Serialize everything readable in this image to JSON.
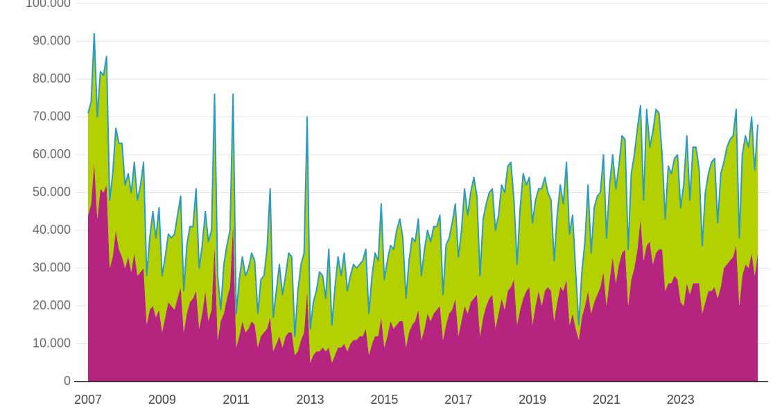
{
  "chart_data": {
    "type": "stacked_area",
    "categories": [
      "2007",
      null,
      null,
      null,
      null,
      null,
      null,
      null,
      null,
      null,
      null,
      null,
      null,
      null,
      null,
      null,
      null,
      null,
      null,
      null,
      null,
      null,
      null,
      null,
      "2009",
      null,
      null,
      null,
      null,
      null,
      null,
      null,
      null,
      null,
      null,
      null,
      null,
      null,
      null,
      null,
      null,
      null,
      null,
      null,
      null,
      null,
      null,
      null,
      "2011",
      null,
      null,
      null,
      null,
      null,
      null,
      null,
      null,
      null,
      null,
      null,
      null,
      null,
      null,
      null,
      null,
      null,
      null,
      null,
      null,
      null,
      null,
      null,
      "2013",
      null,
      null,
      null,
      null,
      null,
      null,
      null,
      null,
      null,
      null,
      null,
      null,
      null,
      null,
      null,
      null,
      null,
      null,
      null,
      null,
      null,
      null,
      null,
      "2015",
      null,
      null,
      null,
      null,
      null,
      null,
      null,
      null,
      null,
      null,
      null,
      null,
      null,
      null,
      null,
      null,
      null,
      null,
      null,
      null,
      null,
      null,
      null,
      "2017",
      null,
      null,
      null,
      null,
      null,
      null,
      null,
      null,
      null,
      null,
      null,
      null,
      null,
      null,
      null,
      null,
      null,
      null,
      null,
      null,
      null,
      null,
      null,
      "2019",
      null,
      null,
      null,
      null,
      null,
      null,
      null,
      null,
      null,
      null,
      null,
      null,
      null,
      null,
      null,
      null,
      null,
      null,
      null,
      null,
      null,
      null,
      null,
      "2021",
      null,
      null,
      null,
      null,
      null,
      null,
      null,
      null,
      null,
      null,
      null,
      null,
      null,
      null,
      null,
      null,
      null,
      null,
      null,
      null,
      null,
      null,
      null,
      "2023",
      null,
      null,
      null,
      null,
      null,
      null,
      null,
      null,
      null,
      null,
      null,
      null,
      null,
      null,
      null,
      null,
      null,
      null,
      null,
      null,
      null,
      null,
      null,
      null,
      null
    ],
    "series": [
      {
        "color": "#b5247f",
        "values": [
          44000,
          47000,
          58000,
          43000,
          51000,
          50000,
          52000,
          30000,
          33000,
          40000,
          35000,
          33000,
          30000,
          33000,
          29000,
          34000,
          28000,
          29000,
          30000,
          15000,
          19000,
          20000,
          17000,
          19000,
          13000,
          17000,
          21000,
          20000,
          19000,
          22000,
          25000,
          13000,
          18000,
          21000,
          22000,
          24000,
          14000,
          18000,
          24000,
          16000,
          19000,
          36000,
          11000,
          16000,
          18000,
          22000,
          25000,
          42000,
          9000,
          12000,
          16000,
          13000,
          14000,
          16000,
          15000,
          9000,
          12000,
          13000,
          14000,
          17000,
          8000,
          10000,
          12000,
          9000,
          12000,
          13000,
          13000,
          7000,
          8000,
          11000,
          13000,
          24000,
          5000,
          7000,
          8000,
          8000,
          9000,
          8000,
          9000,
          5000,
          7000,
          9000,
          9000,
          10000,
          8000,
          10000,
          11000,
          11000,
          12000,
          12000,
          14000,
          7000,
          10000,
          12000,
          12000,
          17000,
          9000,
          12000,
          16000,
          14000,
          15000,
          16000,
          16000,
          9000,
          13000,
          15000,
          16000,
          19000,
          11000,
          14000,
          18000,
          16000,
          18000,
          19000,
          20000,
          11000,
          15000,
          18000,
          19000,
          22000,
          12000,
          16000,
          20000,
          18000,
          21000,
          22000,
          23000,
          12000,
          17000,
          20000,
          22000,
          23000,
          14000,
          18000,
          22000,
          19000,
          24000,
          25000,
          27000,
          15000,
          19000,
          22000,
          24000,
          25000,
          15000,
          20000,
          24000,
          20000,
          24000,
          25000,
          24000,
          16000,
          21000,
          25000,
          24000,
          27000,
          15000,
          18000,
          14000,
          11000,
          17000,
          20000,
          24000,
          18000,
          21000,
          23000,
          25000,
          29000,
          20000,
          27000,
          33000,
          26000,
          31000,
          34000,
          35000,
          20000,
          27000,
          30000,
          35000,
          43000,
          32000,
          36000,
          37000,
          31000,
          34000,
          35000,
          35000,
          24000,
          26000,
          26000,
          28000,
          27000,
          21000,
          20000,
          26000,
          23000,
          26000,
          26000,
          26000,
          18000,
          21000,
          24000,
          24000,
          25000,
          22000,
          25000,
          30000,
          31000,
          32000,
          33000,
          36000,
          20000,
          28000,
          31000,
          30000,
          34000,
          28000,
          34000
        ]
      },
      {
        "color": "#b3d100",
        "values": [
          27000,
          27000,
          34000,
          27000,
          31000,
          31000,
          34000,
          18000,
          22000,
          27000,
          28000,
          30000,
          22000,
          22000,
          21000,
          24000,
          20000,
          23000,
          28000,
          13000,
          19000,
          25000,
          21000,
          27000,
          15000,
          16000,
          18000,
          18000,
          20000,
          22000,
          24000,
          11000,
          18000,
          20000,
          19000,
          27000,
          16000,
          18000,
          21000,
          21000,
          21000,
          40000,
          17000,
          3000,
          13000,
          14000,
          15000,
          34000,
          9000,
          15000,
          17000,
          15000,
          16000,
          18000,
          17000,
          9000,
          15000,
          15000,
          21000,
          34000,
          9000,
          14000,
          19000,
          14000,
          16000,
          21000,
          20000,
          5000,
          16000,
          20000,
          21000,
          46000,
          9000,
          14000,
          16000,
          21000,
          19000,
          14000,
          26000,
          10000,
          18000,
          24000,
          19000,
          24000,
          16000,
          18000,
          20000,
          19000,
          19000,
          20000,
          21000,
          11000,
          18000,
          22000,
          20000,
          30000,
          18000,
          20000,
          20000,
          21000,
          25000,
          27000,
          22000,
          13000,
          19000,
          23000,
          21000,
          24000,
          17000,
          21000,
          22000,
          21000,
          23000,
          22000,
          24000,
          12000,
          21000,
          20000,
          23000,
          25000,
          21000,
          24000,
          31000,
          26000,
          29000,
          32000,
          26000,
          16000,
          26000,
          27000,
          28000,
          28000,
          26000,
          26000,
          30000,
          31000,
          33000,
          33000,
          21000,
          16000,
          27000,
          33000,
          28000,
          29000,
          27000,
          28000,
          27000,
          31000,
          30000,
          25000,
          24000,
          16000,
          23000,
          27000,
          23000,
          31000,
          24000,
          26000,
          15000,
          4000,
          12000,
          17000,
          28000,
          16000,
          25000,
          26000,
          25000,
          31000,
          18000,
          25000,
          27000,
          25000,
          26000,
          31000,
          29000,
          15000,
          28000,
          30000,
          32000,
          30000,
          16000,
          36000,
          25000,
          35000,
          38000,
          36000,
          25000,
          19000,
          31000,
          29000,
          31000,
          33000,
          25000,
          32000,
          39000,
          25000,
          36000,
          36000,
          30000,
          18000,
          29000,
          31000,
          34000,
          34000,
          20000,
          30000,
          28000,
          31000,
          32000,
          32000,
          36000,
          18000,
          32000,
          34000,
          32000,
          36000,
          28000,
          34000
        ]
      }
    ],
    "outline_color": "#2a9bc4",
    "ylim": [
      0,
      100000
    ],
    "yticks": [
      0,
      {
        "value": 10000,
        "label": "10.000"
      },
      {
        "value": 20000,
        "label": "20.000"
      },
      {
        "value": 30000,
        "label": "30.000"
      },
      {
        "value": 40000,
        "label": "40.000"
      },
      {
        "value": 50000,
        "label": "50.000"
      },
      {
        "value": 60000,
        "label": "60.000"
      },
      {
        "value": 70000,
        "label": "70.000"
      },
      {
        "value": 80000,
        "label": "80.000"
      },
      {
        "value": 90000,
        "label": "90.000"
      },
      {
        "value": 100000,
        "label": "100.000"
      }
    ],
    "grid": true
  }
}
